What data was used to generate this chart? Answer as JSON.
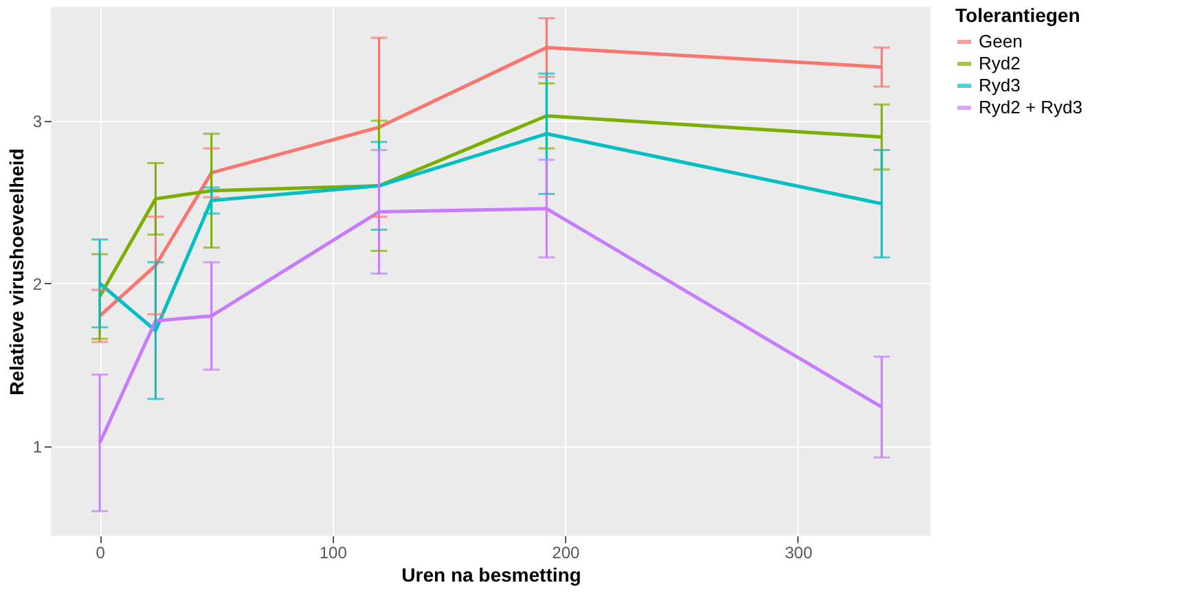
{
  "chart_data": {
    "type": "line",
    "xlabel": "Uren na besmetting",
    "ylabel": "Relatieve virushoeveelheid",
    "legend_title": "Tolerantiegen",
    "legend": "right",
    "grid": true,
    "marker": "none",
    "line_style": "solid",
    "x": [
      0,
      24,
      48,
      120,
      192,
      336
    ],
    "xlim": [
      -21,
      357
    ],
    "xticks": [
      0,
      100,
      200,
      300
    ],
    "ylim": [
      0.45,
      3.7
    ],
    "yticks": [
      1,
      2,
      3
    ],
    "series": [
      {
        "name": "Geen",
        "color": "#f8766d",
        "values": [
          1.8,
          2.11,
          2.68,
          2.96,
          3.45,
          3.33
        ],
        "errors": [
          0.16,
          0.3,
          0.15,
          0.55,
          0.18,
          0.12
        ]
      },
      {
        "name": "Ryd2",
        "color": "#7cae00",
        "values": [
          1.92,
          2.52,
          2.57,
          2.6,
          3.03,
          2.9
        ],
        "errors": [
          0.26,
          0.22,
          0.35,
          0.4,
          0.2,
          0.2
        ]
      },
      {
        "name": "Ryd3",
        "color": "#00bfc4",
        "values": [
          2.0,
          1.71,
          2.51,
          2.6,
          2.92,
          2.49
        ],
        "errors": [
          0.27,
          0.42,
          0.08,
          0.27,
          0.37,
          0.33
        ]
      },
      {
        "name": "Ryd2 + Ryd3",
        "color": "#c77cff",
        "values": [
          1.02,
          1.77,
          1.8,
          2.44,
          2.46,
          1.24
        ],
        "errors": [
          0.42,
          null,
          0.33,
          0.38,
          0.3,
          0.31
        ]
      }
    ]
  }
}
